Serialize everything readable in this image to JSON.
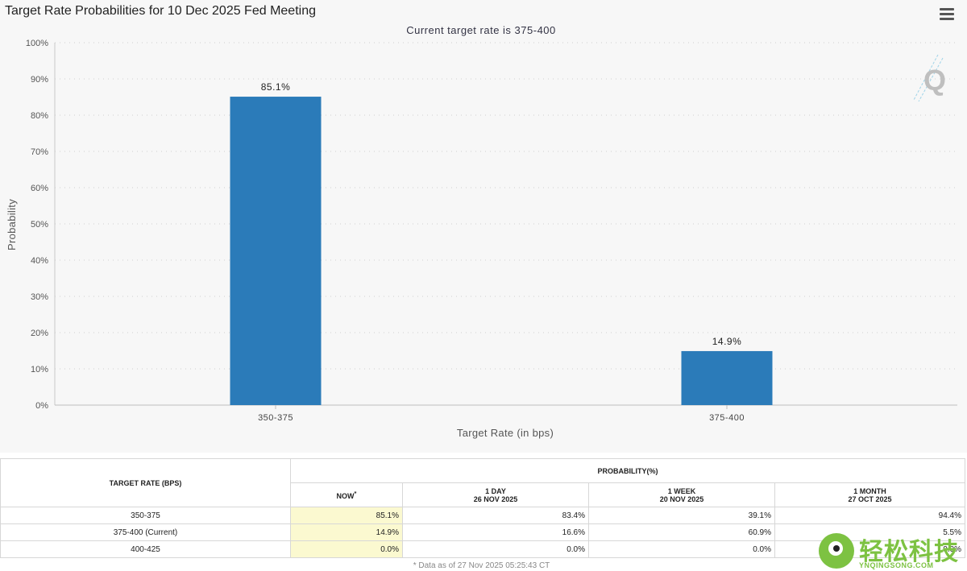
{
  "chart_title": "Target Rate Probabilities for 10 Dec 2025 Fed Meeting",
  "chart_data": {
    "type": "bar",
    "title": "Target Rate Probabilities for 10 Dec 2025 Fed Meeting",
    "subtitle": "Current target rate is 375-400",
    "categories": [
      "350-375",
      "375-400"
    ],
    "values": [
      85.1,
      14.9
    ],
    "value_labels": [
      "85.1%",
      "14.9%"
    ],
    "xlabel": "Target Rate (in bps)",
    "ylabel": "Probability",
    "ylim": [
      0,
      100
    ],
    "yticks": [
      0,
      10,
      20,
      30,
      40,
      50,
      60,
      70,
      80,
      90,
      100
    ],
    "ytick_labels": [
      "0%",
      "10%",
      "20%",
      "30%",
      "40%",
      "50%",
      "60%",
      "70%",
      "80%",
      "90%",
      "100%"
    ],
    "grid": true,
    "bar_color": "#2b7bb9"
  },
  "table": {
    "rate_header": "TARGET RATE (BPS)",
    "prob_header": "PROBABILITY(%)",
    "col_now": "NOW",
    "col_now_mark": "*",
    "cols": [
      {
        "period": "1 DAY",
        "date": "26 NOV 2025"
      },
      {
        "period": "1 WEEK",
        "date": "20 NOV 2025"
      },
      {
        "period": "1 MONTH",
        "date": "27 OCT 2025"
      }
    ],
    "rows": [
      {
        "rate": "350-375",
        "now": "85.1%",
        "d1": "83.4%",
        "w1": "39.1%",
        "m1": "94.4%"
      },
      {
        "rate": "375-400 (Current)",
        "now": "14.9%",
        "d1": "16.6%",
        "w1": "60.9%",
        "m1": "5.5%"
      },
      {
        "rate": "400-425",
        "now": "0.0%",
        "d1": "0.0%",
        "w1": "0.0%",
        "m1": "0.0%"
      }
    ]
  },
  "footnote": "* Data as of 27 Nov 2025 05:25:43 CT",
  "watermark": {
    "text": "轻松科技",
    "url": "YNQINGSONG.COM",
    "color": "#7dc242"
  },
  "q_logo_letter": "Q"
}
